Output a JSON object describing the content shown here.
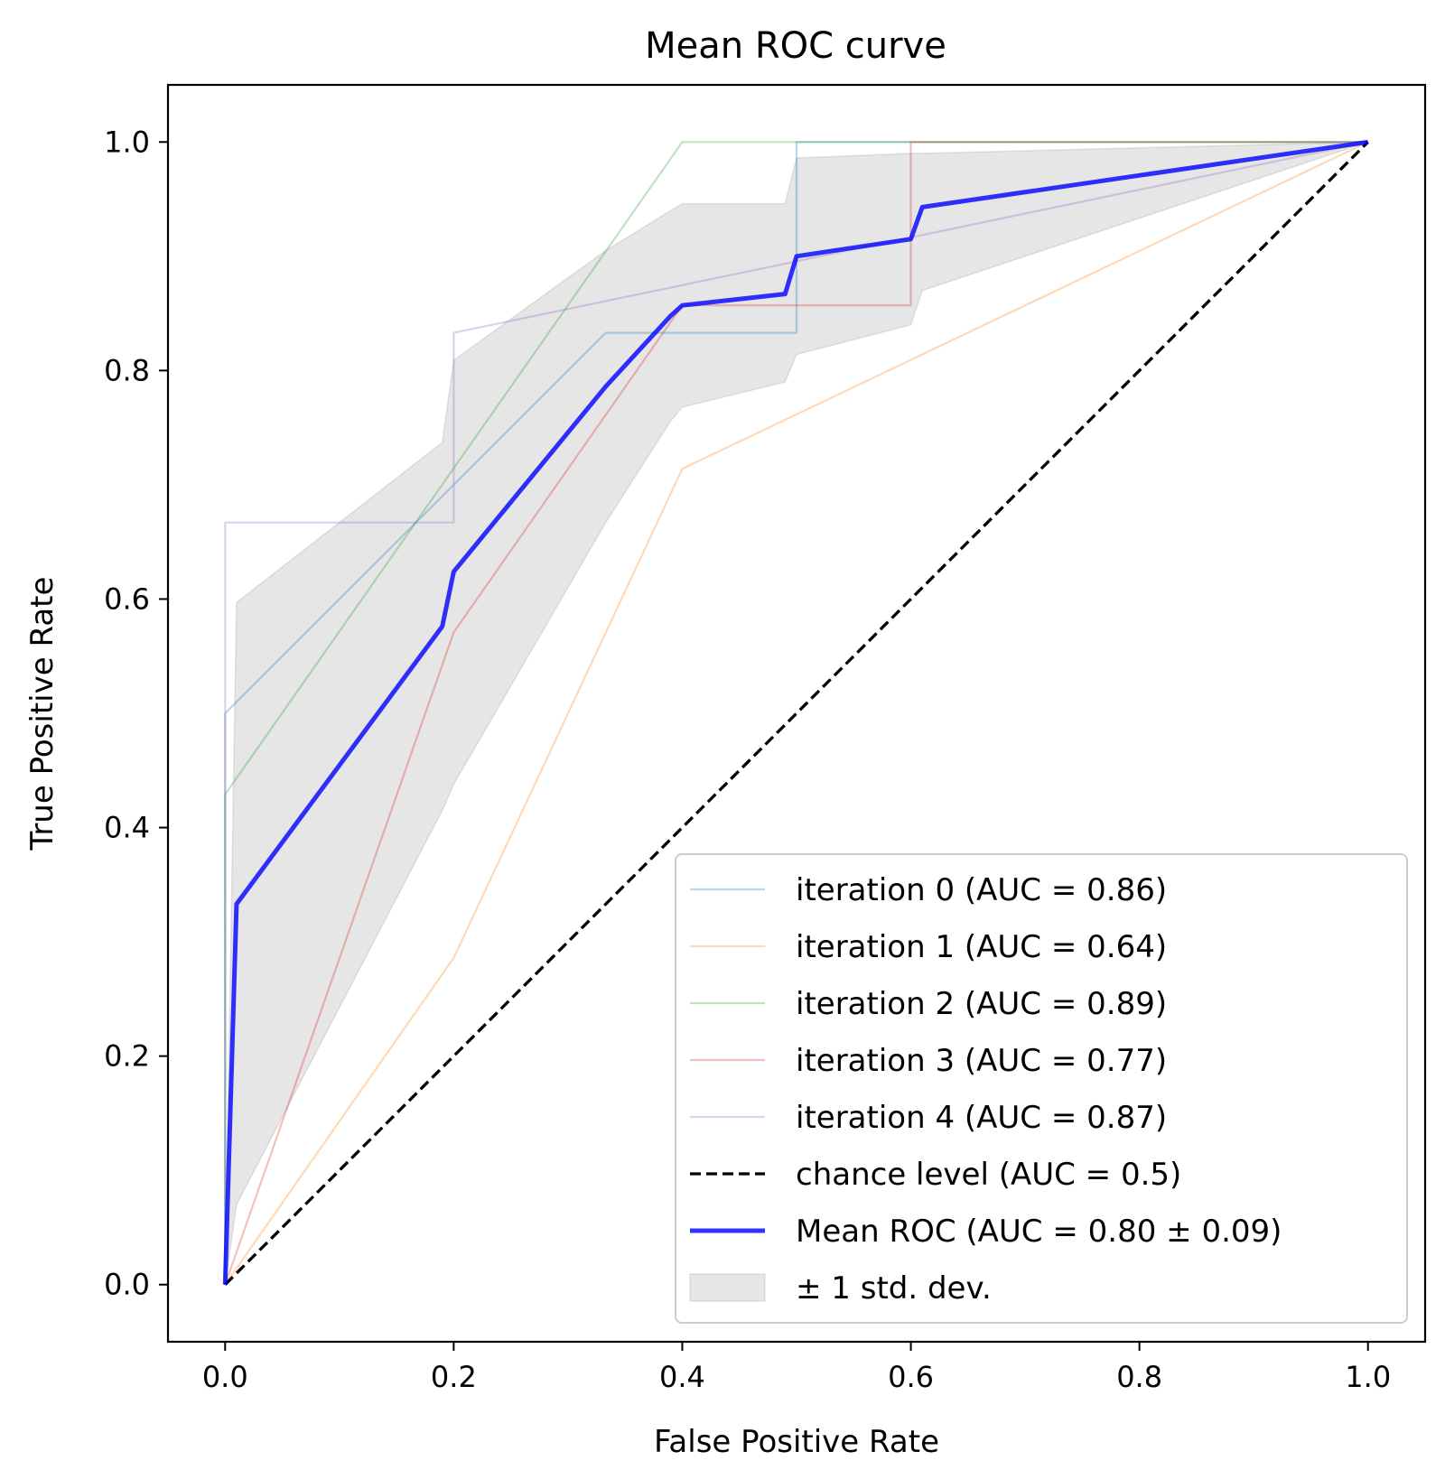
{
  "chart_data": {
    "type": "line",
    "title": "Mean ROC curve",
    "xlabel": "False Positive Rate",
    "ylabel": "True Positive Rate",
    "xlim": [
      -0.05,
      1.05
    ],
    "ylim": [
      -0.05,
      1.05
    ],
    "xticks": [
      "0.0",
      "0.2",
      "0.4",
      "0.6",
      "0.8",
      "1.0"
    ],
    "yticks": [
      "0.0",
      "0.2",
      "0.4",
      "0.6",
      "0.8",
      "1.0"
    ],
    "grid": false,
    "legend_position": "lower-right",
    "series": [
      {
        "name": "iteration 0 (AUC = 0.86)",
        "color": "#1f77b4",
        "x": [
          0.0,
          0.0,
          0.333,
          0.5,
          0.5,
          1.0
        ],
        "y": [
          0.0,
          0.5,
          0.833,
          0.833,
          1.0,
          1.0
        ]
      },
      {
        "name": "iteration 1 (AUC = 0.64)",
        "color": "#ff7f0e",
        "x": [
          0.0,
          0.2,
          0.4,
          1.0
        ],
        "y": [
          0.0,
          0.286,
          0.714,
          1.0
        ]
      },
      {
        "name": "iteration 2 (AUC = 0.89)",
        "color": "#2ca02c",
        "x": [
          0.0,
          0.0,
          0.4,
          1.0
        ],
        "y": [
          0.0,
          0.429,
          1.0,
          1.0
        ]
      },
      {
        "name": "iteration 3 (AUC = 0.77)",
        "color": "#d62728",
        "x": [
          0.0,
          0.2,
          0.4,
          0.6,
          0.6,
          1.0
        ],
        "y": [
          0.0,
          0.571,
          0.857,
          0.857,
          1.0,
          1.0
        ]
      },
      {
        "name": "iteration 4 (AUC = 0.87)",
        "color": "#9467bd",
        "x": [
          0.0,
          0.0,
          0.2,
          0.2,
          1.0
        ],
        "y": [
          0.0,
          0.667,
          0.667,
          0.833,
          1.0
        ]
      },
      {
        "name": "chance level (AUC = 0.5)",
        "color": "#000000",
        "x": [
          0.0,
          1.0
        ],
        "y": [
          0.0,
          1.0
        ]
      },
      {
        "name": "Mean ROC (AUC = 0.80 ± 0.09)",
        "color": "#0000ff",
        "x": [
          0.0,
          0.01,
          0.19,
          0.2,
          0.333,
          0.39,
          0.4,
          0.49,
          0.5,
          0.6,
          0.61,
          1.0
        ],
        "y": [
          0.0,
          0.333,
          0.576,
          0.624,
          0.786,
          0.848,
          0.857,
          0.867,
          0.9,
          0.915,
          0.943,
          1.0
        ]
      }
    ],
    "band": {
      "name": "± 1 std. dev.",
      "color": "#808080",
      "x": [
        0.0,
        0.01,
        0.19,
        0.2,
        0.333,
        0.39,
        0.4,
        0.49,
        0.5,
        0.6,
        0.61,
        1.0
      ],
      "upper": [
        0.0,
        0.597,
        0.737,
        0.809,
        0.905,
        0.94,
        0.946,
        0.946,
        0.986,
        0.99,
        0.99,
        1.0
      ],
      "lower": [
        0.0,
        0.07,
        0.415,
        0.438,
        0.667,
        0.756,
        0.768,
        0.79,
        0.814,
        0.84,
        0.87,
        1.0
      ]
    }
  }
}
